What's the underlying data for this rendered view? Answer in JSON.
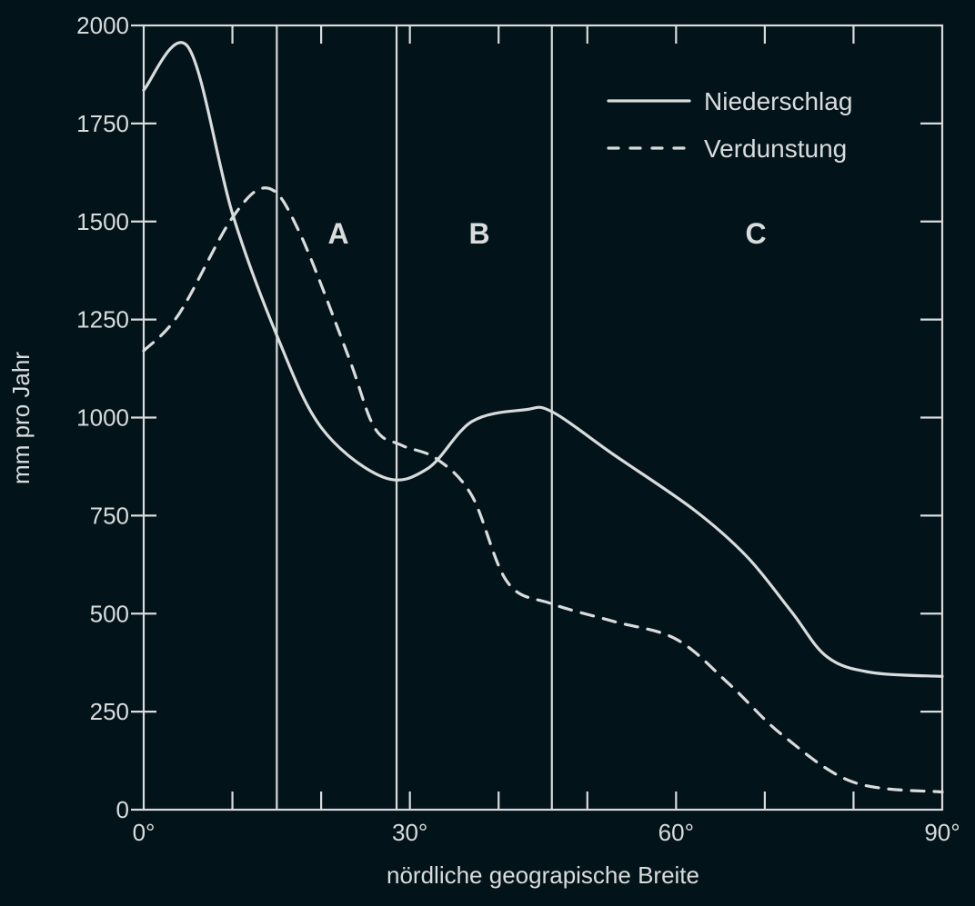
{
  "chart_data": {
    "type": "line",
    "title": "",
    "xlabel": "nördliche geograpische Breite",
    "ylabel": "mm pro Jahr",
    "xlim": [
      0,
      90
    ],
    "ylim": [
      0,
      2000
    ],
    "x_ticks": [
      0,
      10,
      20,
      30,
      40,
      50,
      60,
      70,
      80,
      90
    ],
    "x_tick_labels": [
      "0°",
      "30°",
      "60°",
      "90°"
    ],
    "x_tick_label_values": [
      0,
      30,
      60,
      90
    ],
    "y_ticks": [
      0,
      250,
      500,
      750,
      1000,
      1250,
      1500,
      1750,
      2000
    ],
    "y_tick_labels": [
      "0",
      "250",
      "500",
      "750",
      "1000",
      "1250",
      "1500",
      "1750",
      "2000"
    ],
    "grid": false,
    "legend_position": "upper right",
    "series": [
      {
        "name": "Niederschlag",
        "style": "solid",
        "x": [
          0,
          5,
          10,
          15,
          20,
          27,
          32,
          37,
          43,
          46,
          53,
          62,
          68,
          73,
          77,
          82,
          90
        ],
        "values": [
          1835,
          1945,
          1520,
          1210,
          975,
          848,
          870,
          990,
          1020,
          1015,
          905,
          765,
          645,
          505,
          390,
          350,
          340
        ]
      },
      {
        "name": "Verdunstung",
        "style": "dashed",
        "x": [
          0,
          4,
          10,
          14,
          17.5,
          23,
          26,
          29,
          33,
          37,
          41,
          46,
          53,
          60,
          66,
          72,
          80,
          90
        ],
        "values": [
          1170,
          1265,
          1510,
          1585,
          1475,
          1160,
          975,
          930,
          895,
          800,
          580,
          525,
          480,
          435,
          320,
          190,
          70,
          45
        ]
      }
    ],
    "regions": [
      {
        "label": "A",
        "from": 15,
        "to": 28.5
      },
      {
        "label": "B",
        "from": 28.5,
        "to": 46
      },
      {
        "label": "C",
        "from": 46,
        "to": 90
      }
    ],
    "region_boundaries": [
      15,
      28.5,
      46
    ]
  },
  "legend": {
    "items": [
      {
        "label": "Niederschlag",
        "style": "solid"
      },
      {
        "label": "Verdunstung",
        "style": "dashed"
      }
    ]
  },
  "colors": {
    "background": "#03131a",
    "foreground": "#d9dcdd"
  }
}
